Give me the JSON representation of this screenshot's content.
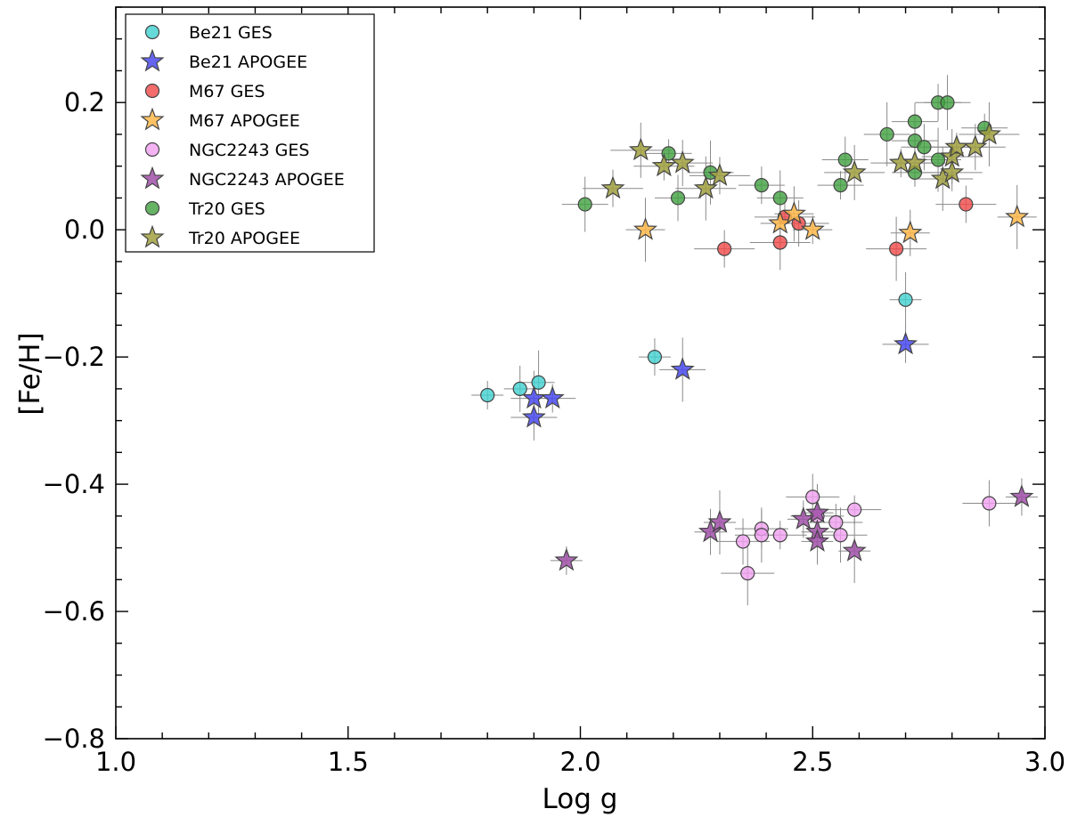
{
  "chart_data": {
    "type": "scatter",
    "xlabel": "Log g",
    "ylabel": "[Fe/H]",
    "xlim": [
      1.0,
      3.0
    ],
    "ylim": [
      -0.8,
      0.35
    ],
    "xticks": [
      1.0,
      1.5,
      2.0,
      2.5,
      3.0
    ],
    "xtick_labels": [
      "1.0",
      "1.5",
      "2.0",
      "2.5",
      "3.0"
    ],
    "yticks": [
      -0.8,
      -0.6,
      -0.4,
      -0.2,
      0.0,
      0.2
    ],
    "ytick_labels": [
      "−0.8",
      "−0.6",
      "−0.4",
      "−0.2",
      "0.0",
      "0.2"
    ],
    "legend_position": "top-left",
    "series": [
      {
        "name": "Be21  GES",
        "marker": "circle",
        "color": "#40d0d0",
        "points": [
          [
            1.8,
            -0.26
          ],
          [
            1.87,
            -0.25
          ],
          [
            1.91,
            -0.24
          ],
          [
            2.16,
            -0.2
          ],
          [
            2.7,
            -0.11
          ]
        ]
      },
      {
        "name": "Be21 APOGEE",
        "marker": "star",
        "color": "#4a4af0",
        "points": [
          [
            1.9,
            -0.265
          ],
          [
            1.94,
            -0.265
          ],
          [
            1.9,
            -0.295
          ],
          [
            2.22,
            -0.22
          ],
          [
            2.7,
            -0.18
          ]
        ]
      },
      {
        "name": "M67  GES",
        "marker": "circle",
        "color": "#f04848",
        "points": [
          [
            2.31,
            -0.03
          ],
          [
            2.43,
            -0.02
          ],
          [
            2.44,
            0.02
          ],
          [
            2.47,
            0.01
          ],
          [
            2.68,
            -0.03
          ],
          [
            2.83,
            0.04
          ]
        ]
      },
      {
        "name": "M67 APOGEE",
        "marker": "star",
        "color": "#ffb84a",
        "points": [
          [
            2.14,
            0.0
          ],
          [
            2.43,
            0.01
          ],
          [
            2.46,
            0.025
          ],
          [
            2.5,
            0.0
          ],
          [
            2.71,
            -0.005
          ],
          [
            2.94,
            0.02
          ]
        ]
      },
      {
        "name": "NGC2243  GES",
        "marker": "circle",
        "color": "#f0a0f0",
        "points": [
          [
            2.35,
            -0.49
          ],
          [
            2.36,
            -0.54
          ],
          [
            2.39,
            -0.47
          ],
          [
            2.39,
            -0.48
          ],
          [
            2.43,
            -0.48
          ],
          [
            2.5,
            -0.42
          ],
          [
            2.51,
            -0.45
          ],
          [
            2.55,
            -0.46
          ],
          [
            2.56,
            -0.48
          ],
          [
            2.59,
            -0.44
          ],
          [
            2.88,
            -0.43
          ]
        ]
      },
      {
        "name": "NGC2243 APOGEE",
        "marker": "star",
        "color": "#a050a8",
        "points": [
          [
            1.97,
            -0.52
          ],
          [
            2.28,
            -0.475
          ],
          [
            2.3,
            -0.46
          ],
          [
            2.48,
            -0.455
          ],
          [
            2.51,
            -0.445
          ],
          [
            2.51,
            -0.475
          ],
          [
            2.51,
            -0.49
          ],
          [
            2.59,
            -0.505
          ],
          [
            2.95,
            -0.42
          ]
        ]
      },
      {
        "name": "Tr20  GES",
        "marker": "circle",
        "color": "#40a040",
        "points": [
          [
            2.01,
            0.04
          ],
          [
            2.19,
            0.12
          ],
          [
            2.21,
            0.05
          ],
          [
            2.28,
            0.09
          ],
          [
            2.39,
            0.07
          ],
          [
            2.43,
            0.05
          ],
          [
            2.56,
            0.07
          ],
          [
            2.57,
            0.11
          ],
          [
            2.66,
            0.15
          ],
          [
            2.72,
            0.17
          ],
          [
            2.72,
            0.14
          ],
          [
            2.72,
            0.09
          ],
          [
            2.74,
            0.13
          ],
          [
            2.77,
            0.11
          ],
          [
            2.77,
            0.2
          ],
          [
            2.79,
            0.2
          ],
          [
            2.87,
            0.16
          ]
        ]
      },
      {
        "name": "Tr20 APOGEE",
        "marker": "star",
        "color": "#a0a040",
        "points": [
          [
            2.07,
            0.065
          ],
          [
            2.13,
            0.125
          ],
          [
            2.18,
            0.1
          ],
          [
            2.22,
            0.105
          ],
          [
            2.27,
            0.065
          ],
          [
            2.3,
            0.085
          ],
          [
            2.59,
            0.09
          ],
          [
            2.69,
            0.105
          ],
          [
            2.72,
            0.105
          ],
          [
            2.78,
            0.08
          ],
          [
            2.8,
            0.09
          ],
          [
            2.8,
            0.115
          ],
          [
            2.81,
            0.13
          ],
          [
            2.85,
            0.13
          ],
          [
            2.88,
            0.15
          ]
        ]
      }
    ]
  }
}
